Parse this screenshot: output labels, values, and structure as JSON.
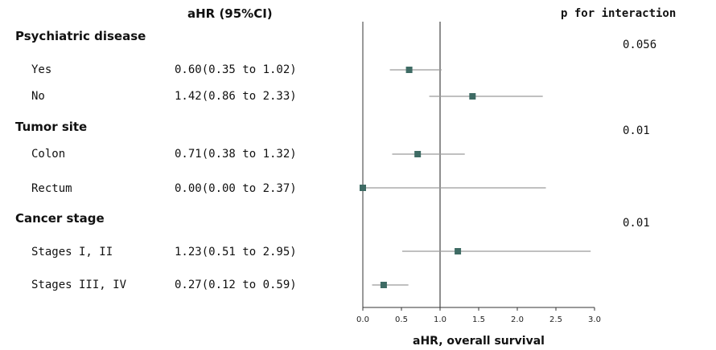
{
  "headers": {
    "ahr": "aHR (95%CI)",
    "p_interaction": "p for interaction"
  },
  "groups": [
    {
      "title": "Psychiatric disease",
      "p_interaction": "0.056",
      "rows": [
        {
          "label": "Yes",
          "estimate_text": "0.60(0.35 to 1.02)"
        },
        {
          "label": "No",
          "estimate_text": "1.42(0.86 to 2.33)"
        }
      ]
    },
    {
      "title": "Tumor site",
      "p_interaction": "0.01",
      "rows": [
        {
          "label": "Colon",
          "estimate_text": "0.71(0.38 to 1.32)"
        },
        {
          "label": "Rectum",
          "estimate_text": "0.00(0.00 to 2.37)"
        }
      ]
    },
    {
      "title": "Cancer stage",
      "p_interaction": "0.01",
      "rows": [
        {
          "label": "Stages I, II",
          "estimate_text": "1.23(0.51 to 2.95)"
        },
        {
          "label": "Stages III, IV",
          "estimate_text": "0.27(0.12 to 0.59)"
        }
      ]
    }
  ],
  "chart_data": {
    "type": "scatter",
    "subtype": "forest",
    "xlabel": "aHR, overall survival",
    "xlim": [
      0.0,
      3.0
    ],
    "xticks": [
      "0.0",
      "0.5",
      "1.0",
      "1.5",
      "2.0",
      "2.5",
      "3.0"
    ],
    "reference_line": 1.0,
    "marker_color": "#3e6b64",
    "ci_color": "#9a9a9a",
    "points": [
      {
        "label": "Yes",
        "est": 0.6,
        "lo": 0.35,
        "hi": 1.02
      },
      {
        "label": "No",
        "est": 1.42,
        "lo": 0.86,
        "hi": 2.33
      },
      {
        "label": "Colon",
        "est": 0.71,
        "lo": 0.38,
        "hi": 1.32
      },
      {
        "label": "Rectum",
        "est": 0.0,
        "lo": 0.0,
        "hi": 2.37
      },
      {
        "label": "Stages I, II",
        "est": 1.23,
        "lo": 0.51,
        "hi": 2.95
      },
      {
        "label": "Stages III, IV",
        "est": 0.27,
        "lo": 0.12,
        "hi": 0.59
      }
    ]
  }
}
